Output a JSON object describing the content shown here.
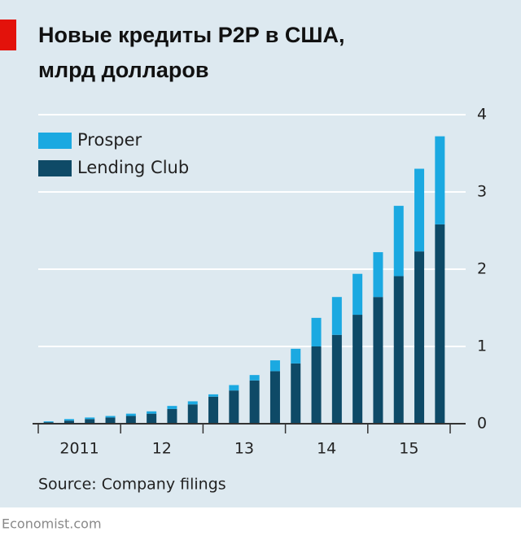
{
  "chart_data": {
    "type": "stacked_bar",
    "title": [
      "Новые кредиты P2P в США,",
      "млрд долларов"
    ],
    "source": "Source: Company filings",
    "footer": "Economist.com",
    "categories": [
      null,
      "2011",
      null,
      null,
      null,
      "12",
      null,
      null,
      null,
      "13",
      null,
      null,
      null,
      "14",
      null,
      null,
      null,
      "15",
      null,
      null
    ],
    "series": [
      {
        "name": "Lending Club",
        "color": "#0e4a67",
        "values": [
          0.02,
          0.04,
          0.06,
          0.08,
          0.1,
          0.13,
          0.19,
          0.25,
          0.35,
          0.43,
          0.56,
          0.68,
          0.78,
          1.0,
          1.15,
          1.41,
          1.64,
          1.91,
          2.23,
          2.58
        ]
      },
      {
        "name": "Prosper",
        "color": "#1ba9e1",
        "values": [
          0.01,
          0.02,
          0.02,
          0.02,
          0.03,
          0.03,
          0.04,
          0.04,
          0.03,
          0.07,
          0.07,
          0.14,
          0.19,
          0.37,
          0.49,
          0.53,
          0.58,
          0.91,
          1.07,
          1.14
        ]
      }
    ],
    "ylim": [
      0,
      4
    ],
    "yticks": [
      0,
      1,
      2,
      3,
      4
    ],
    "grid": true,
    "legend": "top-left"
  }
}
